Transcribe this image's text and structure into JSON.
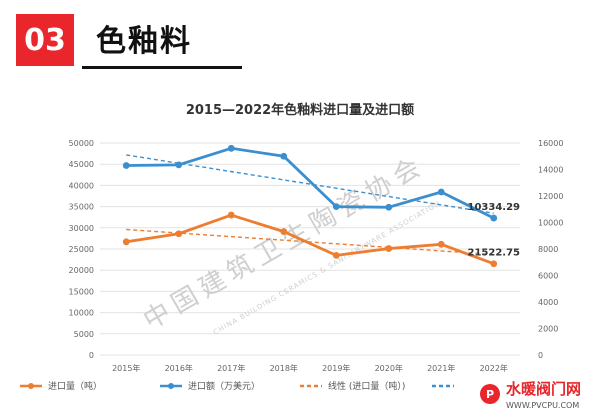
{
  "section": {
    "number": "03",
    "title": "色釉料"
  },
  "watermark": {
    "text": "中国建筑卫生陶瓷协会",
    "text_en": "CHINA BUILDING CERAMICS & SANITARYWARE ASSOCIATION"
  },
  "corner_logo": {
    "text": "水暖阀门网",
    "url": "WWW.PVCPU.COM"
  },
  "colors": {
    "orange": "#ed7d31",
    "blue": "#3b8fcf",
    "accent_red": "#e8262b"
  },
  "chart_data": {
    "type": "line",
    "title": "2015—2022年色釉料进口量及进口额",
    "categories": [
      "2015年",
      "2016年",
      "2017年",
      "2018年",
      "2019年",
      "2020年",
      "2021年",
      "2022年"
    ],
    "series": [
      {
        "name": "进口量（吨）",
        "axis": "left",
        "color": "#ed7d31",
        "values": [
          26700,
          28600,
          33000,
          29100,
          23500,
          25100,
          26100,
          21522.75
        ]
      },
      {
        "name": "进口额（万美元）",
        "axis": "right",
        "color": "#3b8fcf",
        "values": [
          14300,
          14350,
          15600,
          15000,
          11200,
          11150,
          12300,
          10334.29
        ]
      }
    ],
    "trendlines": [
      {
        "name": "线性 (进口量（吨）)",
        "axis": "left",
        "color": "#ed7d31",
        "start": 29600,
        "end": 23700
      },
      {
        "axis": "right",
        "color": "#3b8fcf",
        "start": 15100,
        "end": 10700
      }
    ],
    "data_labels": [
      {
        "series": 1,
        "index": 7,
        "text": "10334.29"
      },
      {
        "series": 0,
        "index": 7,
        "text": "21522.75"
      }
    ],
    "y_left": {
      "min": 0,
      "max": 50000,
      "ticks": [
        "0",
        "5000",
        "10000",
        "15000",
        "20000",
        "25000",
        "30000",
        "35000",
        "40000",
        "45000",
        "50000"
      ]
    },
    "y_right": {
      "min": 0,
      "max": 16000,
      "ticks": [
        "0",
        "2000",
        "4000",
        "6000",
        "8000",
        "10000",
        "12000",
        "14000",
        "16000"
      ]
    },
    "grid": true,
    "legend": {
      "position": "bottom",
      "entries": [
        "进口量（吨）",
        "进口额（万美元）",
        "线性 (进口量（吨）)"
      ]
    }
  }
}
